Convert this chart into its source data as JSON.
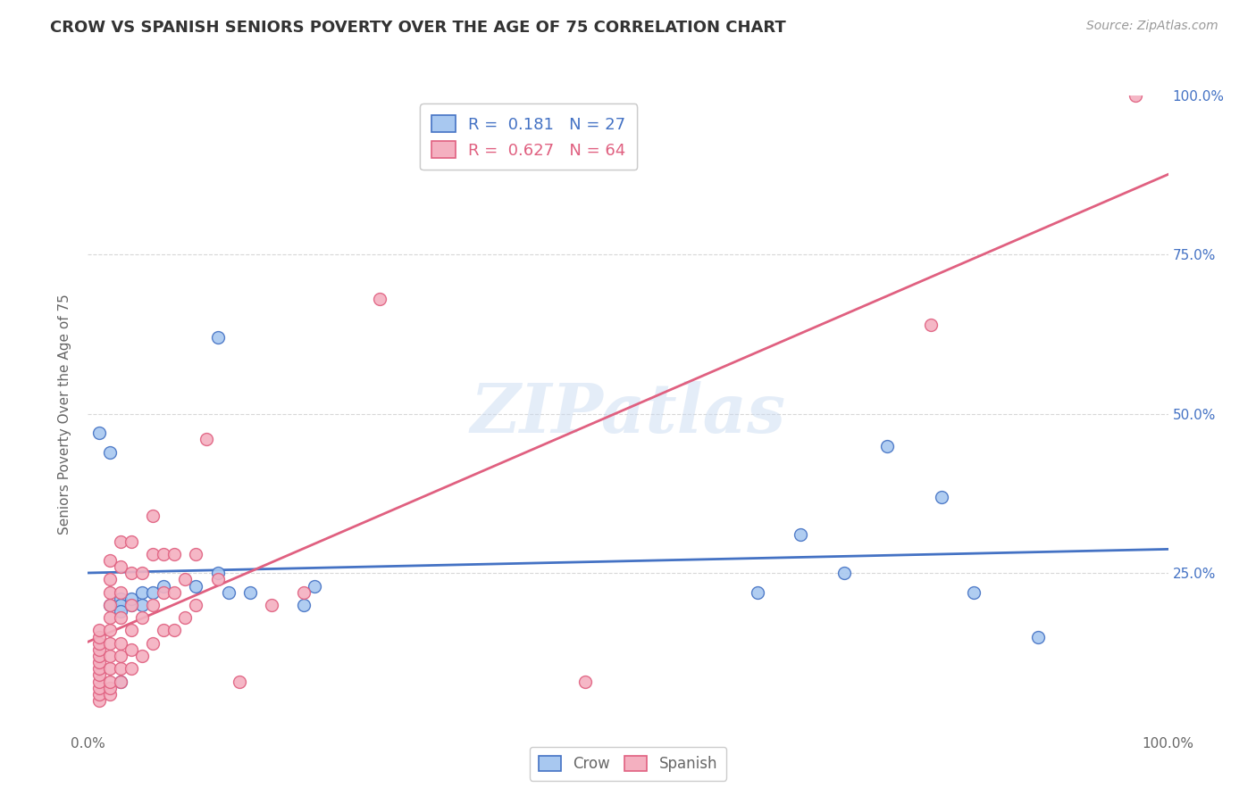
{
  "title": "CROW VS SPANISH SENIORS POVERTY OVER THE AGE OF 75 CORRELATION CHART",
  "source": "Source: ZipAtlas.com",
  "ylabel": "Seniors Poverty Over the Age of 75",
  "xlim": [
    0,
    1.0
  ],
  "ylim": [
    0,
    1.0
  ],
  "xtick_positions": [
    0.0,
    0.25,
    0.5,
    0.75,
    1.0
  ],
  "xtick_labels": [
    "0.0%",
    "",
    "",
    "",
    "100.0%"
  ],
  "ytick_positions": [
    0.0,
    0.25,
    0.5,
    0.75,
    1.0
  ],
  "ytick_labels_right": [
    "",
    "25.0%",
    "50.0%",
    "75.0%",
    "100.0%"
  ],
  "watermark": "ZIPatlas",
  "crow_R": 0.181,
  "crow_N": 27,
  "spanish_R": 0.627,
  "spanish_N": 64,
  "crow_color": "#a8c8f0",
  "spanish_color": "#f4b0c0",
  "crow_line_color": "#4472c4",
  "spanish_line_color": "#e06080",
  "crow_points": [
    [
      0.01,
      0.47
    ],
    [
      0.02,
      0.44
    ],
    [
      0.02,
      0.2
    ],
    [
      0.03,
      0.21
    ],
    [
      0.03,
      0.2
    ],
    [
      0.03,
      0.19
    ],
    [
      0.04,
      0.2
    ],
    [
      0.04,
      0.21
    ],
    [
      0.05,
      0.22
    ],
    [
      0.05,
      0.2
    ],
    [
      0.06,
      0.22
    ],
    [
      0.07,
      0.23
    ],
    [
      0.1,
      0.23
    ],
    [
      0.12,
      0.25
    ],
    [
      0.12,
      0.62
    ],
    [
      0.13,
      0.22
    ],
    [
      0.15,
      0.22
    ],
    [
      0.2,
      0.2
    ],
    [
      0.21,
      0.23
    ],
    [
      0.03,
      0.08
    ],
    [
      0.62,
      0.22
    ],
    [
      0.66,
      0.31
    ],
    [
      0.7,
      0.25
    ],
    [
      0.74,
      0.45
    ],
    [
      0.79,
      0.37
    ],
    [
      0.82,
      0.22
    ],
    [
      0.88,
      0.15
    ]
  ],
  "spanish_points": [
    [
      0.01,
      0.05
    ],
    [
      0.01,
      0.06
    ],
    [
      0.01,
      0.07
    ],
    [
      0.01,
      0.08
    ],
    [
      0.01,
      0.09
    ],
    [
      0.01,
      0.1
    ],
    [
      0.01,
      0.11
    ],
    [
      0.01,
      0.12
    ],
    [
      0.01,
      0.13
    ],
    [
      0.01,
      0.14
    ],
    [
      0.01,
      0.15
    ],
    [
      0.01,
      0.16
    ],
    [
      0.02,
      0.06
    ],
    [
      0.02,
      0.07
    ],
    [
      0.02,
      0.08
    ],
    [
      0.02,
      0.1
    ],
    [
      0.02,
      0.12
    ],
    [
      0.02,
      0.14
    ],
    [
      0.02,
      0.16
    ],
    [
      0.02,
      0.18
    ],
    [
      0.02,
      0.2
    ],
    [
      0.02,
      0.22
    ],
    [
      0.02,
      0.24
    ],
    [
      0.02,
      0.27
    ],
    [
      0.03,
      0.08
    ],
    [
      0.03,
      0.1
    ],
    [
      0.03,
      0.12
    ],
    [
      0.03,
      0.14
    ],
    [
      0.03,
      0.18
    ],
    [
      0.03,
      0.22
    ],
    [
      0.03,
      0.26
    ],
    [
      0.03,
      0.3
    ],
    [
      0.04,
      0.1
    ],
    [
      0.04,
      0.13
    ],
    [
      0.04,
      0.16
    ],
    [
      0.04,
      0.2
    ],
    [
      0.04,
      0.25
    ],
    [
      0.04,
      0.3
    ],
    [
      0.05,
      0.12
    ],
    [
      0.05,
      0.18
    ],
    [
      0.05,
      0.25
    ],
    [
      0.06,
      0.14
    ],
    [
      0.06,
      0.2
    ],
    [
      0.06,
      0.28
    ],
    [
      0.06,
      0.34
    ],
    [
      0.07,
      0.16
    ],
    [
      0.07,
      0.22
    ],
    [
      0.07,
      0.28
    ],
    [
      0.08,
      0.16
    ],
    [
      0.08,
      0.22
    ],
    [
      0.08,
      0.28
    ],
    [
      0.09,
      0.18
    ],
    [
      0.09,
      0.24
    ],
    [
      0.1,
      0.2
    ],
    [
      0.1,
      0.28
    ],
    [
      0.11,
      0.46
    ],
    [
      0.12,
      0.24
    ],
    [
      0.14,
      0.08
    ],
    [
      0.17,
      0.2
    ],
    [
      0.2,
      0.22
    ],
    [
      0.27,
      0.68
    ],
    [
      0.46,
      0.08
    ],
    [
      0.78,
      0.64
    ],
    [
      0.97,
      1.0
    ]
  ],
  "background_color": "#ffffff",
  "grid_color": "#d8d8d8",
  "title_color": "#333333",
  "axis_label_color": "#666666",
  "right_axis_color": "#4472c4"
}
